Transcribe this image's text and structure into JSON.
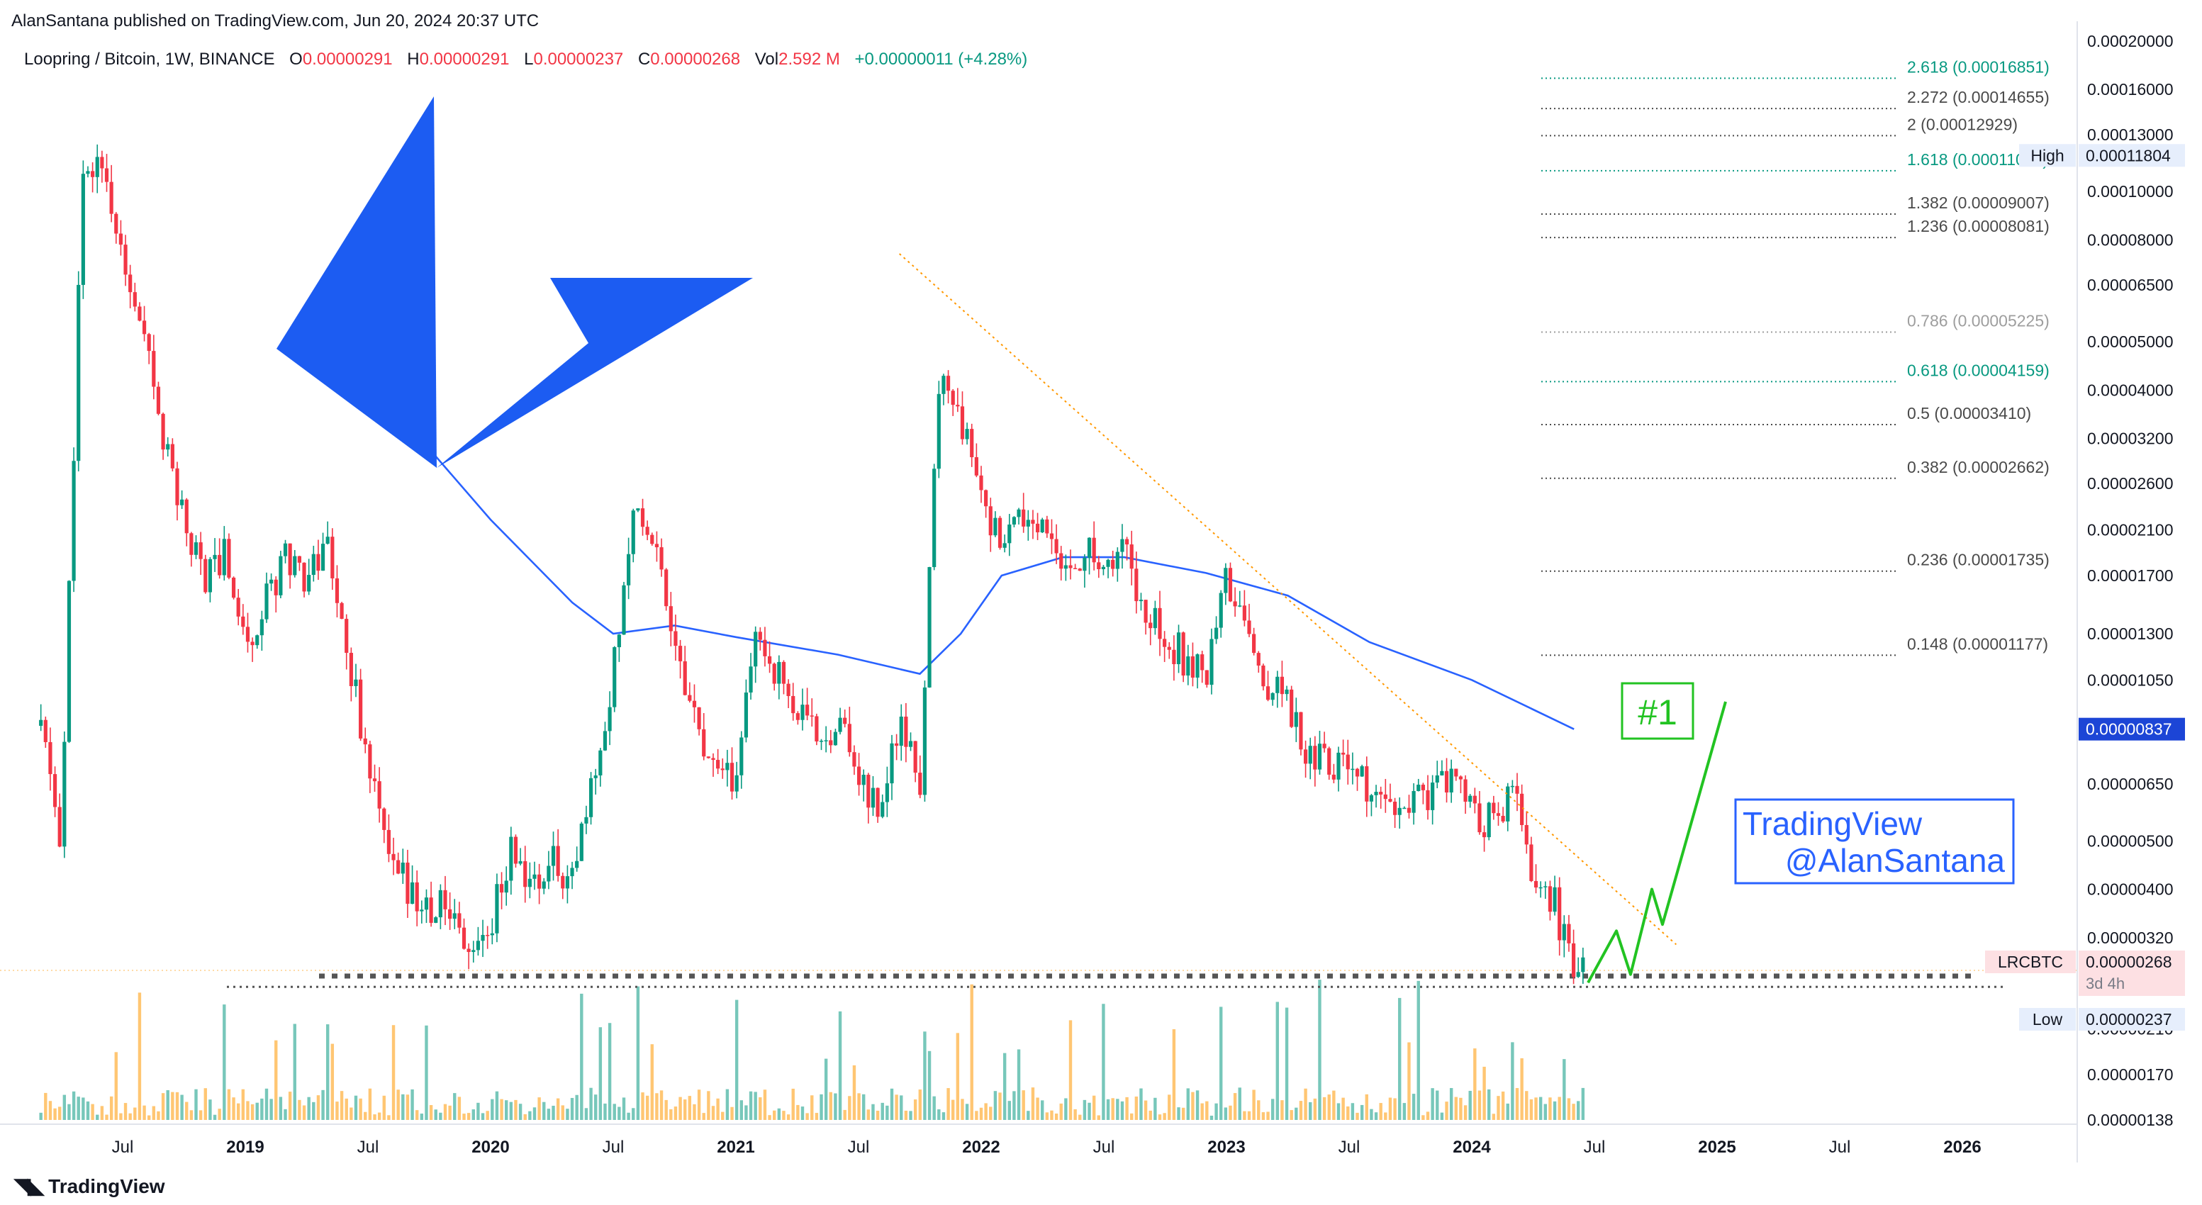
{
  "header": {
    "published": "AlanSantana published on TradingView.com, Jun 20, 2024 20:37 UTC",
    "symbol_line": "Loopring / Bitcoin, 1W, BINANCE",
    "ohlc": {
      "o_label": "O",
      "o": "0.00000291",
      "h_label": "H",
      "h": "0.00000291",
      "l_label": "L",
      "l": "0.00000237",
      "c_label": "C",
      "c": "0.00000268",
      "vol_label": "Vol",
      "vol": "2.592 M",
      "change": "+0.00000011 (+4.28%)"
    }
  },
  "footer": {
    "brand": "TradingView"
  },
  "price_axis": {
    "ticks": [
      "0.00020000",
      "0.00016000",
      "0.00013000",
      "0.00010000",
      "0.00008000",
      "0.00006500",
      "0.00005000",
      "0.00004000",
      "0.00003200",
      "0.00002600",
      "0.00002100",
      "0.00001700",
      "0.00001300",
      "0.00001050",
      "0.00000650",
      "0.00000500",
      "0.00000400",
      "0.00000320",
      "0.00000210",
      "0.00000170",
      "0.00000138"
    ],
    "tick_values": [
      0.0002,
      0.00016,
      0.00013,
      0.0001,
      8e-05,
      6.5e-05,
      5e-05,
      4e-05,
      3.2e-05,
      2.6e-05,
      2.1e-05,
      1.7e-05,
      1.3e-05,
      1.05e-05,
      6.5e-06,
      5e-06,
      4e-06,
      3.2e-06,
      2.1e-06,
      1.7e-06,
      1.38e-06
    ],
    "high_label": "High",
    "high_value": "0.00011804",
    "ma_value": "0.00000837",
    "last_symbol": "LRCBTC",
    "last_value": "0.00000268",
    "countdown": "3d 4h",
    "low_label": "Low",
    "low_value": "0.00000237"
  },
  "time_axis": {
    "labels": [
      {
        "text": "Jul",
        "bold": false,
        "date": "2018-07"
      },
      {
        "text": "2019",
        "bold": true,
        "date": "2019-01"
      },
      {
        "text": "Jul",
        "bold": false,
        "date": "2019-07"
      },
      {
        "text": "2020",
        "bold": true,
        "date": "2020-01"
      },
      {
        "text": "Jul",
        "bold": false,
        "date": "2020-07"
      },
      {
        "text": "2021",
        "bold": true,
        "date": "2021-01"
      },
      {
        "text": "Jul",
        "bold": false,
        "date": "2021-07"
      },
      {
        "text": "2022",
        "bold": true,
        "date": "2022-01"
      },
      {
        "text": "Jul",
        "bold": false,
        "date": "2022-07"
      },
      {
        "text": "2023",
        "bold": true,
        "date": "2023-01"
      },
      {
        "text": "Jul",
        "bold": false,
        "date": "2023-07"
      },
      {
        "text": "2024",
        "bold": true,
        "date": "2024-01"
      },
      {
        "text": "Jul",
        "bold": false,
        "date": "2024-07"
      },
      {
        "text": "2025",
        "bold": true,
        "date": "2025-01"
      },
      {
        "text": "Jul",
        "bold": false,
        "date": "2025-07"
      },
      {
        "text": "2026",
        "bold": true,
        "date": "2026-01"
      }
    ]
  },
  "fib_levels": [
    {
      "label": "2.618 (0.00016851)",
      "value": 0.00016851,
      "color": "#089981"
    },
    {
      "label": "2.272 (0.00014655)",
      "value": 0.00014655,
      "color": "#4a4a4a"
    },
    {
      "label": "2 (0.00012929)",
      "value": 0.00012929,
      "color": "#4a4a4a"
    },
    {
      "label": "1.618 (0.00011000)",
      "value": 0.00011,
      "color": "#089981"
    },
    {
      "label": "1.382 (0.00009007)",
      "value": 9.007e-05,
      "color": "#4a4a4a"
    },
    {
      "label": "1.236 (0.00008081)",
      "value": 8.081e-05,
      "color": "#4a4a4a"
    },
    {
      "label": "0.786 (0.00005225)",
      "value": 5.225e-05,
      "color": "#9e9e9e"
    },
    {
      "label": "0.618 (0.00004159)",
      "value": 4.159e-05,
      "color": "#089981"
    },
    {
      "label": "0.5 (0.00003410)",
      "value": 3.41e-05,
      "color": "#4a4a4a"
    },
    {
      "label": "0.382 (0.00002662)",
      "value": 2.662e-05,
      "color": "#4a4a4a"
    },
    {
      "label": "0.236 (0.00001735)",
      "value": 1.735e-05,
      "color": "#4a4a4a"
    },
    {
      "label": "0.148 (0.00001177)",
      "value": 1.177e-05,
      "color": "#4a4a4a"
    }
  ],
  "annotations": {
    "target_label": "#1",
    "watermark_line1": "TradingView",
    "watermark_line2": "@AlanSantana"
  },
  "colors": {
    "up": "#089981",
    "down": "#f23645",
    "ma": "#2962ff",
    "logo": "#1c5cf2",
    "green_draw": "#22c322",
    "trend": "#ff9800",
    "wm": "#2962ff"
  },
  "chart_data": {
    "type": "candlestick",
    "title": "Loopring / Bitcoin, 1W, BINANCE",
    "scale": "log",
    "ylim": [
      1.38e-06,
      0.0002
    ],
    "xlim": [
      "2018-03",
      "2026-06"
    ],
    "ohlc_path": [
      {
        "date": "2018-03",
        "price": 8.5e-06
      },
      {
        "date": "2018-04",
        "price": 5e-06
      },
      {
        "date": "2018-05",
        "price": 0.0001
      },
      {
        "date": "2018-06",
        "price": 0.00011804
      },
      {
        "date": "2018-07",
        "price": 7e-05
      },
      {
        "date": "2018-08",
        "price": 5e-05
      },
      {
        "date": "2018-09",
        "price": 3.2e-05
      },
      {
        "date": "2018-10",
        "price": 2.2e-05
      },
      {
        "date": "2018-11",
        "price": 1.7e-05
      },
      {
        "date": "2018-12",
        "price": 1.9e-05
      },
      {
        "date": "2019-01",
        "price": 1.25e-05
      },
      {
        "date": "2019-02",
        "price": 1.5e-05
      },
      {
        "date": "2019-03",
        "price": 1.9e-05
      },
      {
        "date": "2019-04",
        "price": 1.7e-05
      },
      {
        "date": "2019-05",
        "price": 2e-05
      },
      {
        "date": "2019-06",
        "price": 1.2e-05
      },
      {
        "date": "2019-07",
        "price": 7.2e-06
      },
      {
        "date": "2019-08",
        "price": 4.5e-06
      },
      {
        "date": "2019-09",
        "price": 4e-06
      },
      {
        "date": "2019-10",
        "price": 3.6e-06
      },
      {
        "date": "2019-11",
        "price": 3.7e-06
      },
      {
        "date": "2019-12",
        "price": 3e-06
      },
      {
        "date": "2020-01",
        "price": 3.4e-06
      },
      {
        "date": "2020-02",
        "price": 4.8e-06
      },
      {
        "date": "2020-03",
        "price": 4e-06
      },
      {
        "date": "2020-04",
        "price": 4.5e-06
      },
      {
        "date": "2020-05",
        "price": 4.2e-06
      },
      {
        "date": "2020-06",
        "price": 6.5e-06
      },
      {
        "date": "2020-07",
        "price": 1.1e-05
      },
      {
        "date": "2020-08",
        "price": 2.4e-05
      },
      {
        "date": "2020-09",
        "price": 2e-05
      },
      {
        "date": "2020-10",
        "price": 1.3e-05
      },
      {
        "date": "2020-11",
        "price": 8.5e-06
      },
      {
        "date": "2020-12",
        "price": 6.5e-06
      },
      {
        "date": "2021-01",
        "price": 6.7e-06
      },
      {
        "date": "2021-02",
        "price": 1.3e-05
      },
      {
        "date": "2021-03",
        "price": 1.1e-05
      },
      {
        "date": "2021-04",
        "price": 9e-06
      },
      {
        "date": "2021-05",
        "price": 8e-06
      },
      {
        "date": "2021-06",
        "price": 8.8e-06
      },
      {
        "date": "2021-07",
        "price": 6.8e-06
      },
      {
        "date": "2021-08",
        "price": 5.7e-06
      },
      {
        "date": "2021-09",
        "price": 8.5e-06
      },
      {
        "date": "2021-10",
        "price": 6.5e-06
      },
      {
        "date": "2021-11",
        "price": 4.6e-05
      },
      {
        "date": "2021-12",
        "price": 3.5e-05
      },
      {
        "date": "2022-01",
        "price": 2.4e-05
      },
      {
        "date": "2022-02",
        "price": 1.9e-05
      },
      {
        "date": "2022-03",
        "price": 2.2e-05
      },
      {
        "date": "2022-04",
        "price": 2.1e-05
      },
      {
        "date": "2022-05",
        "price": 1.7e-05
      },
      {
        "date": "2022-06",
        "price": 1.9e-05
      },
      {
        "date": "2022-07",
        "price": 1.8e-05
      },
      {
        "date": "2022-08",
        "price": 1.9e-05
      },
      {
        "date": "2022-09",
        "price": 1.5e-05
      },
      {
        "date": "2022-10",
        "price": 1.3e-05
      },
      {
        "date": "2022-11",
        "price": 1.15e-05
      },
      {
        "date": "2022-12",
        "price": 1.1e-05
      },
      {
        "date": "2023-01",
        "price": 1.7e-05
      },
      {
        "date": "2023-02",
        "price": 1.3e-05
      },
      {
        "date": "2023-03",
        "price": 1.05e-05
      },
      {
        "date": "2023-04",
        "price": 9.5e-06
      },
      {
        "date": "2023-05",
        "price": 7.5e-06
      },
      {
        "date": "2023-06",
        "price": 7.3e-06
      },
      {
        "date": "2023-07",
        "price": 7.1e-06
      },
      {
        "date": "2023-08",
        "price": 6.2e-06
      },
      {
        "date": "2023-09",
        "price": 5.5e-06
      },
      {
        "date": "2023-10",
        "price": 5.8e-06
      },
      {
        "date": "2023-11",
        "price": 6.3e-06
      },
      {
        "date": "2023-12",
        "price": 6.8e-06
      },
      {
        "date": "2024-01",
        "price": 5.8e-06
      },
      {
        "date": "2024-02",
        "price": 5.4e-06
      },
      {
        "date": "2024-03",
        "price": 6.3e-06
      },
      {
        "date": "2024-04",
        "price": 4.2e-06
      },
      {
        "date": "2024-05",
        "price": 3.8e-06
      },
      {
        "date": "2024-06",
        "price": 2.68e-06
      }
    ],
    "ma_path": [
      {
        "date": "2019-09",
        "price": 3.4e-05
      },
      {
        "date": "2020-01",
        "price": 2.2e-05
      },
      {
        "date": "2020-05",
        "price": 1.5e-05
      },
      {
        "date": "2020-07",
        "price": 1.3e-05
      },
      {
        "date": "2020-10",
        "price": 1.35e-05
      },
      {
        "date": "2021-01",
        "price": 1.28e-05
      },
      {
        "date": "2021-06",
        "price": 1.18e-05
      },
      {
        "date": "2021-10",
        "price": 1.08e-05
      },
      {
        "date": "2021-12",
        "price": 1.3e-05
      },
      {
        "date": "2022-02",
        "price": 1.7e-05
      },
      {
        "date": "2022-05",
        "price": 1.85e-05
      },
      {
        "date": "2022-08",
        "price": 1.85e-05
      },
      {
        "date": "2022-12",
        "price": 1.72e-05
      },
      {
        "date": "2023-04",
        "price": 1.55e-05
      },
      {
        "date": "2023-08",
        "price": 1.25e-05
      },
      {
        "date": "2024-01",
        "price": 1.05e-05
      },
      {
        "date": "2024-06",
        "price": 8.37e-06
      }
    ],
    "trendline": [
      {
        "date": "2021-09",
        "price": 7.5e-05
      },
      {
        "date": "2024-11",
        "price": 3.1e-06
      }
    ],
    "support_lines": [
      2.68e-06,
      2.55e-06
    ],
    "projection": [
      {
        "date": "2024-06",
        "price": 2.6e-06
      },
      {
        "date": "2024-07",
        "price": 3.3e-06
      },
      {
        "date": "2024-07",
        "price": 2.7e-06
      },
      {
        "date": "2024-08",
        "price": 4e-06
      },
      {
        "date": "2024-09",
        "price": 3.4e-06
      },
      {
        "date": "2024-12",
        "price": 9.5e-06
      }
    ]
  }
}
